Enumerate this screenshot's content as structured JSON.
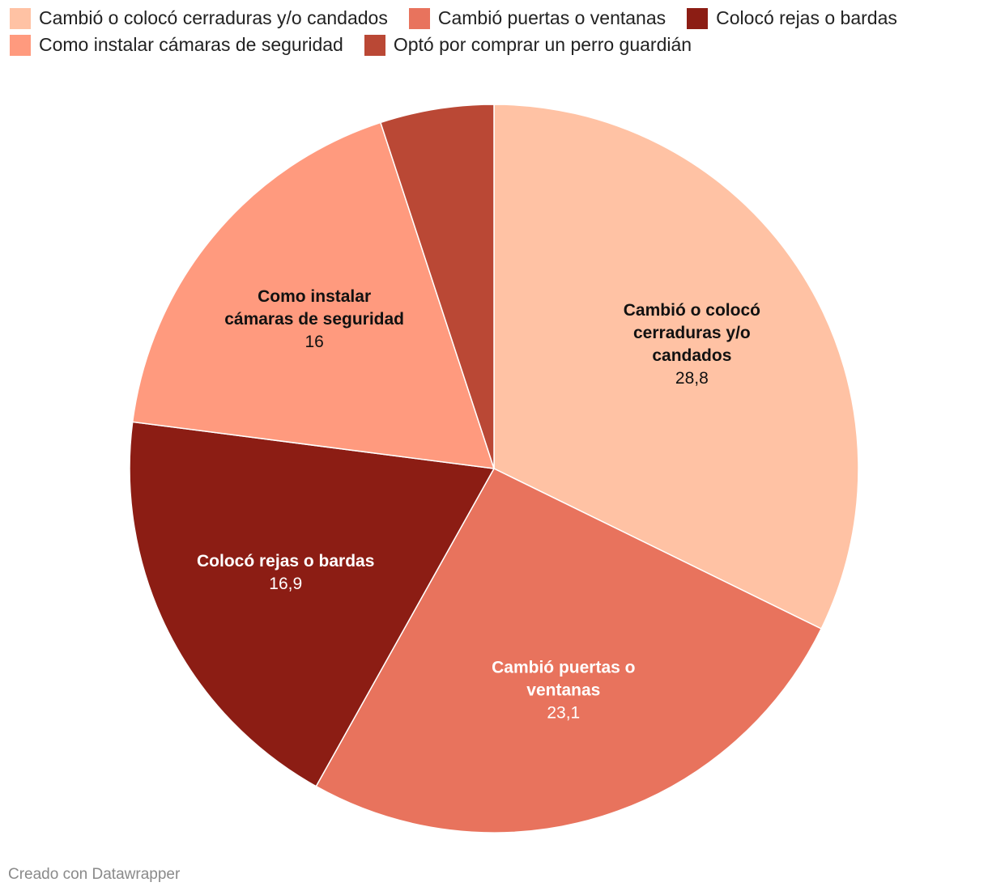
{
  "chart_data": {
    "type": "pie",
    "categories": [
      "Cambió o colocó cerraduras y/o candados",
      "Cambió puertas o ventanas",
      "Colocó rejas o bardas",
      "Como instalar cámaras de seguridad",
      "Optó por comprar un perro guardián"
    ],
    "values": [
      28.8,
      23.1,
      16.9,
      16,
      4.5
    ],
    "value_labels": [
      "28,8",
      "23,1",
      "16,9",
      "16",
      ""
    ],
    "slice_labels": [
      [
        "Cambió o colocó",
        "cerraduras y/o",
        "candados"
      ],
      [
        "Cambió puertas o",
        "ventanas"
      ],
      [
        "Colocó rejas o bardas"
      ],
      [
        "Como instalar",
        "cámaras de seguridad"
      ],
      []
    ],
    "colors": [
      "#ffc2a4",
      "#e8735d",
      "#8c1d14",
      "#ff9a7e",
      "#ba4835"
    ],
    "label_text_colors": [
      "#111111",
      "#ffffff",
      "#ffffff",
      "#111111",
      "#ffffff"
    ],
    "legend_position": "top"
  },
  "footer": {
    "credit": "Creado con Datawrapper"
  }
}
